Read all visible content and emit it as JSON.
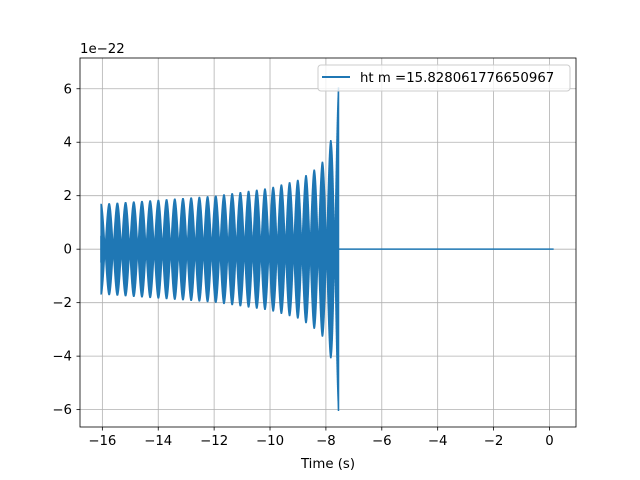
{
  "chart_data": {
    "type": "line",
    "title": "",
    "xlabel": "Time (s)",
    "ylabel": "",
    "y_offset_label": "1e−22",
    "y_scale_exponent": -22,
    "xlim": [
      -16.8,
      0.95
    ],
    "ylim": [
      -6.65,
      7.15
    ],
    "xticks": [
      -16,
      -14,
      -12,
      -10,
      -8,
      -6,
      -4,
      -2,
      0
    ],
    "xtick_labels": [
      "−16",
      "−14",
      "−12",
      "−10",
      "−8",
      "−6",
      "−4",
      "−2",
      "0"
    ],
    "yticks": [
      -6,
      -4,
      -2,
      0,
      2,
      4,
      6
    ],
    "ytick_labels": [
      "−6",
      "−4",
      "−2",
      "0",
      "2",
      "4",
      "6"
    ],
    "grid": true,
    "legend_position": "upper right",
    "series": [
      {
        "name": "ht m =15.828061776650967",
        "color": "#1f77b4",
        "signal": "chirp",
        "t_start": -16.05,
        "t_merger": -7.55,
        "t_end": 0.15,
        "envelope": [
          {
            "t": -16.05,
            "amp": 1.7
          },
          {
            "t": -14.0,
            "amp": 1.85
          },
          {
            "t": -12.0,
            "amp": 2.0
          },
          {
            "t": -10.0,
            "amp": 2.3
          },
          {
            "t": -9.0,
            "amp": 2.6
          },
          {
            "t": -8.5,
            "amp": 2.9
          },
          {
            "t": -8.0,
            "amp": 3.4
          },
          {
            "t": -7.8,
            "amp": 4.2
          },
          {
            "t": -7.65,
            "amp": 5.3
          },
          {
            "t": -7.55,
            "amp": 6.05
          }
        ],
        "post_merger_value": 0.0
      }
    ]
  }
}
